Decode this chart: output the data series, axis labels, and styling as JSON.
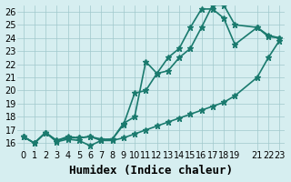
{
  "background_color": "#d6eef0",
  "grid_color": "#a0c8cc",
  "line_color": "#1a7a6e",
  "line_width": 1.2,
  "marker": "*",
  "marker_size": 5,
  "xlabel": "Humidex (Indice chaleur)",
  "xlabel_fontsize": 9,
  "tick_fontsize": 7,
  "ylim": [
    15.5,
    26.5
  ],
  "xlim": [
    -0.5,
    23.5
  ],
  "yticks": [
    16,
    17,
    18,
    19,
    20,
    21,
    22,
    23,
    24,
    25,
    26
  ],
  "xticks": [
    0,
    1,
    2,
    3,
    4,
    5,
    6,
    7,
    8,
    9,
    10,
    11,
    12,
    13,
    14,
    15,
    16,
    17,
    18,
    19,
    21,
    22,
    23
  ],
  "xtick_labels": [
    "0",
    "1",
    "2",
    "3",
    "4",
    "5",
    "6",
    "7",
    "8",
    "9",
    "10",
    "11",
    "12",
    "13",
    "14",
    "15",
    "16",
    "17",
    "18",
    "19",
    "21",
    "22",
    "23"
  ],
  "series": [
    {
      "x": [
        0,
        1,
        2,
        3,
        4,
        5,
        6,
        7,
        8,
        9,
        10,
        11,
        12,
        13,
        14,
        15,
        16,
        17,
        18,
        19,
        21,
        22,
        23
      ],
      "y": [
        16.5,
        16.0,
        16.8,
        16.2,
        16.4,
        16.4,
        16.5,
        16.3,
        16.3,
        17.5,
        18.0,
        22.2,
        21.3,
        22.5,
        23.2,
        24.8,
        26.2,
        26.2,
        25.5,
        23.5,
        24.8,
        24.2,
        24.0
      ]
    },
    {
      "x": [
        0,
        1,
        2,
        3,
        4,
        5,
        6,
        7,
        8,
        9,
        10,
        11,
        12,
        13,
        14,
        15,
        16,
        17,
        18,
        19,
        21,
        22,
        23
      ],
      "y": [
        16.5,
        16.0,
        16.8,
        16.2,
        16.5,
        16.4,
        16.5,
        16.2,
        16.3,
        17.4,
        19.8,
        20.0,
        21.3,
        21.5,
        22.5,
        23.2,
        24.8,
        26.5,
        26.5,
        25.0,
        24.8,
        24.1,
        24.0
      ]
    },
    {
      "x": [
        0,
        1,
        2,
        3,
        4,
        5,
        6,
        7,
        8,
        9,
        10,
        11,
        12,
        13,
        14,
        15,
        16,
        17,
        18,
        19,
        21,
        22,
        23
      ],
      "y": [
        16.5,
        16.0,
        16.8,
        16.1,
        16.3,
        16.2,
        15.8,
        16.2,
        16.2,
        16.4,
        16.7,
        17.0,
        17.3,
        17.6,
        17.9,
        18.2,
        18.5,
        18.8,
        19.1,
        19.6,
        21.0,
        22.5,
        23.8
      ]
    }
  ]
}
